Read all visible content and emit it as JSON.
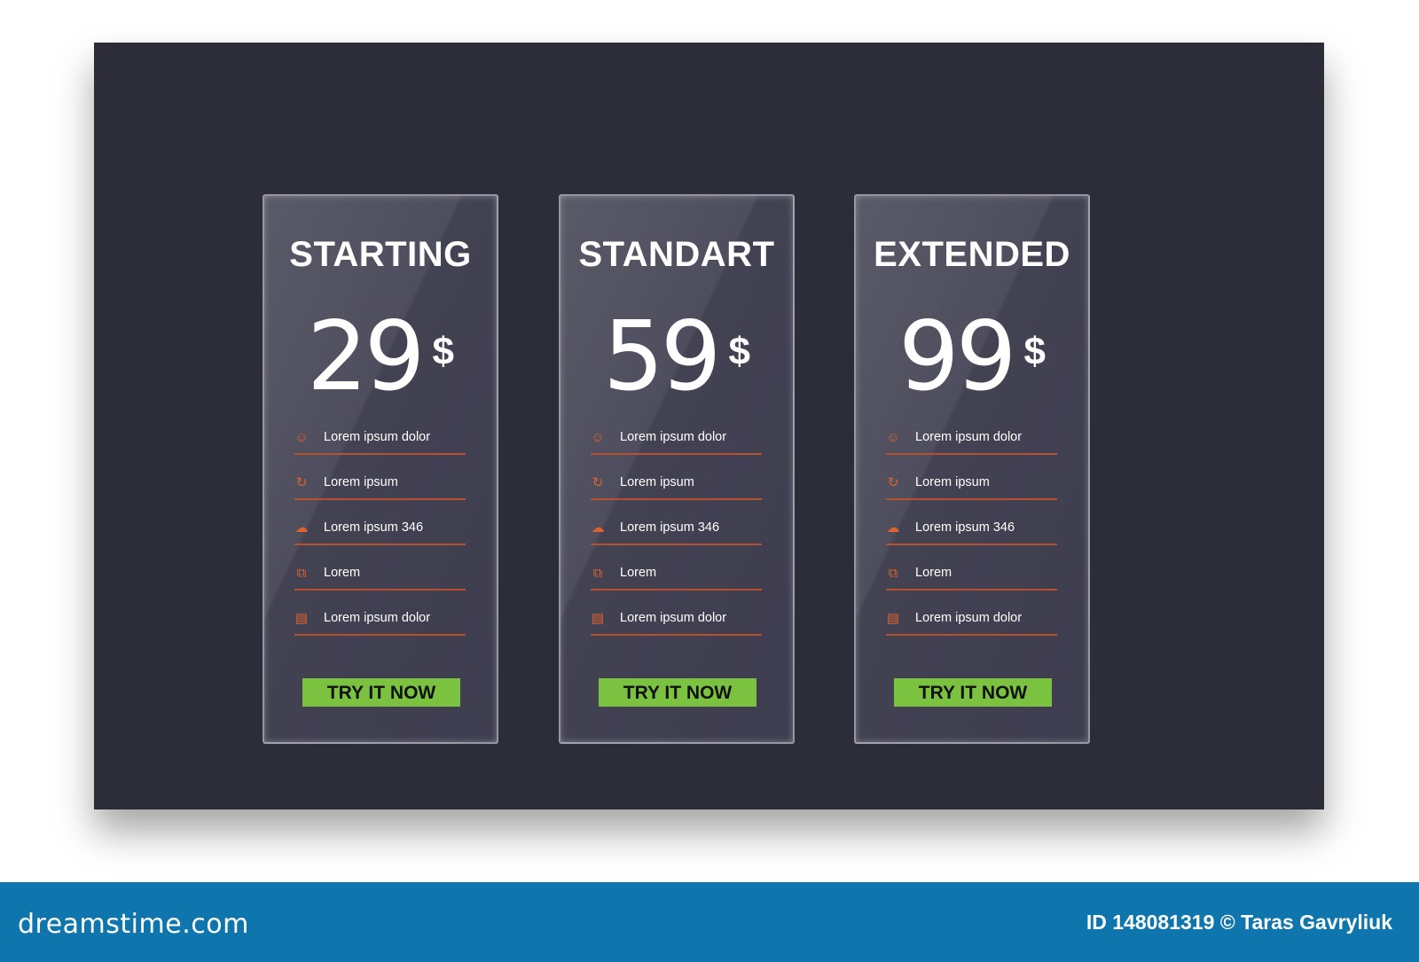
{
  "plans": [
    {
      "title": "STARTING",
      "price": "29",
      "currency": "$",
      "cta": "TRY IT NOW",
      "features": [
        {
          "icon": "users-icon",
          "label": "Lorem ipsum dolor"
        },
        {
          "icon": "refresh-icon",
          "label": "Lorem ipsum"
        },
        {
          "icon": "cloud-icon",
          "label": "Lorem ipsum 346"
        },
        {
          "icon": "puzzle-icon",
          "label": "Lorem"
        },
        {
          "icon": "document-icon",
          "label": "Lorem ipsum dolor"
        }
      ]
    },
    {
      "title": "STANDART",
      "price": "59",
      "currency": "$",
      "cta": "TRY IT NOW",
      "features": [
        {
          "icon": "users-icon",
          "label": "Lorem ipsum dolor"
        },
        {
          "icon": "refresh-icon",
          "label": "Lorem ipsum"
        },
        {
          "icon": "cloud-icon",
          "label": "Lorem ipsum 346"
        },
        {
          "icon": "puzzle-icon",
          "label": "Lorem"
        },
        {
          "icon": "document-icon",
          "label": "Lorem ipsum dolor"
        }
      ]
    },
    {
      "title": "EXTENDED",
      "price": "99",
      "currency": "$",
      "cta": "TRY IT NOW",
      "features": [
        {
          "icon": "users-icon",
          "label": "Lorem ipsum dolor"
        },
        {
          "icon": "refresh-icon",
          "label": "Lorem ipsum"
        },
        {
          "icon": "cloud-icon",
          "label": "Lorem ipsum 346"
        },
        {
          "icon": "puzzle-icon",
          "label": "Lorem"
        },
        {
          "icon": "document-icon",
          "label": "Lorem ipsum dolor"
        }
      ]
    }
  ],
  "colors": {
    "background": "#2d2c39",
    "accent": "#e0622e",
    "cta": "#7cc241",
    "footer": "#0f76ad"
  },
  "footer": {
    "logo": "dreamstime.com",
    "credit": "ID 148081319 © Taras  Gavryliuk"
  }
}
